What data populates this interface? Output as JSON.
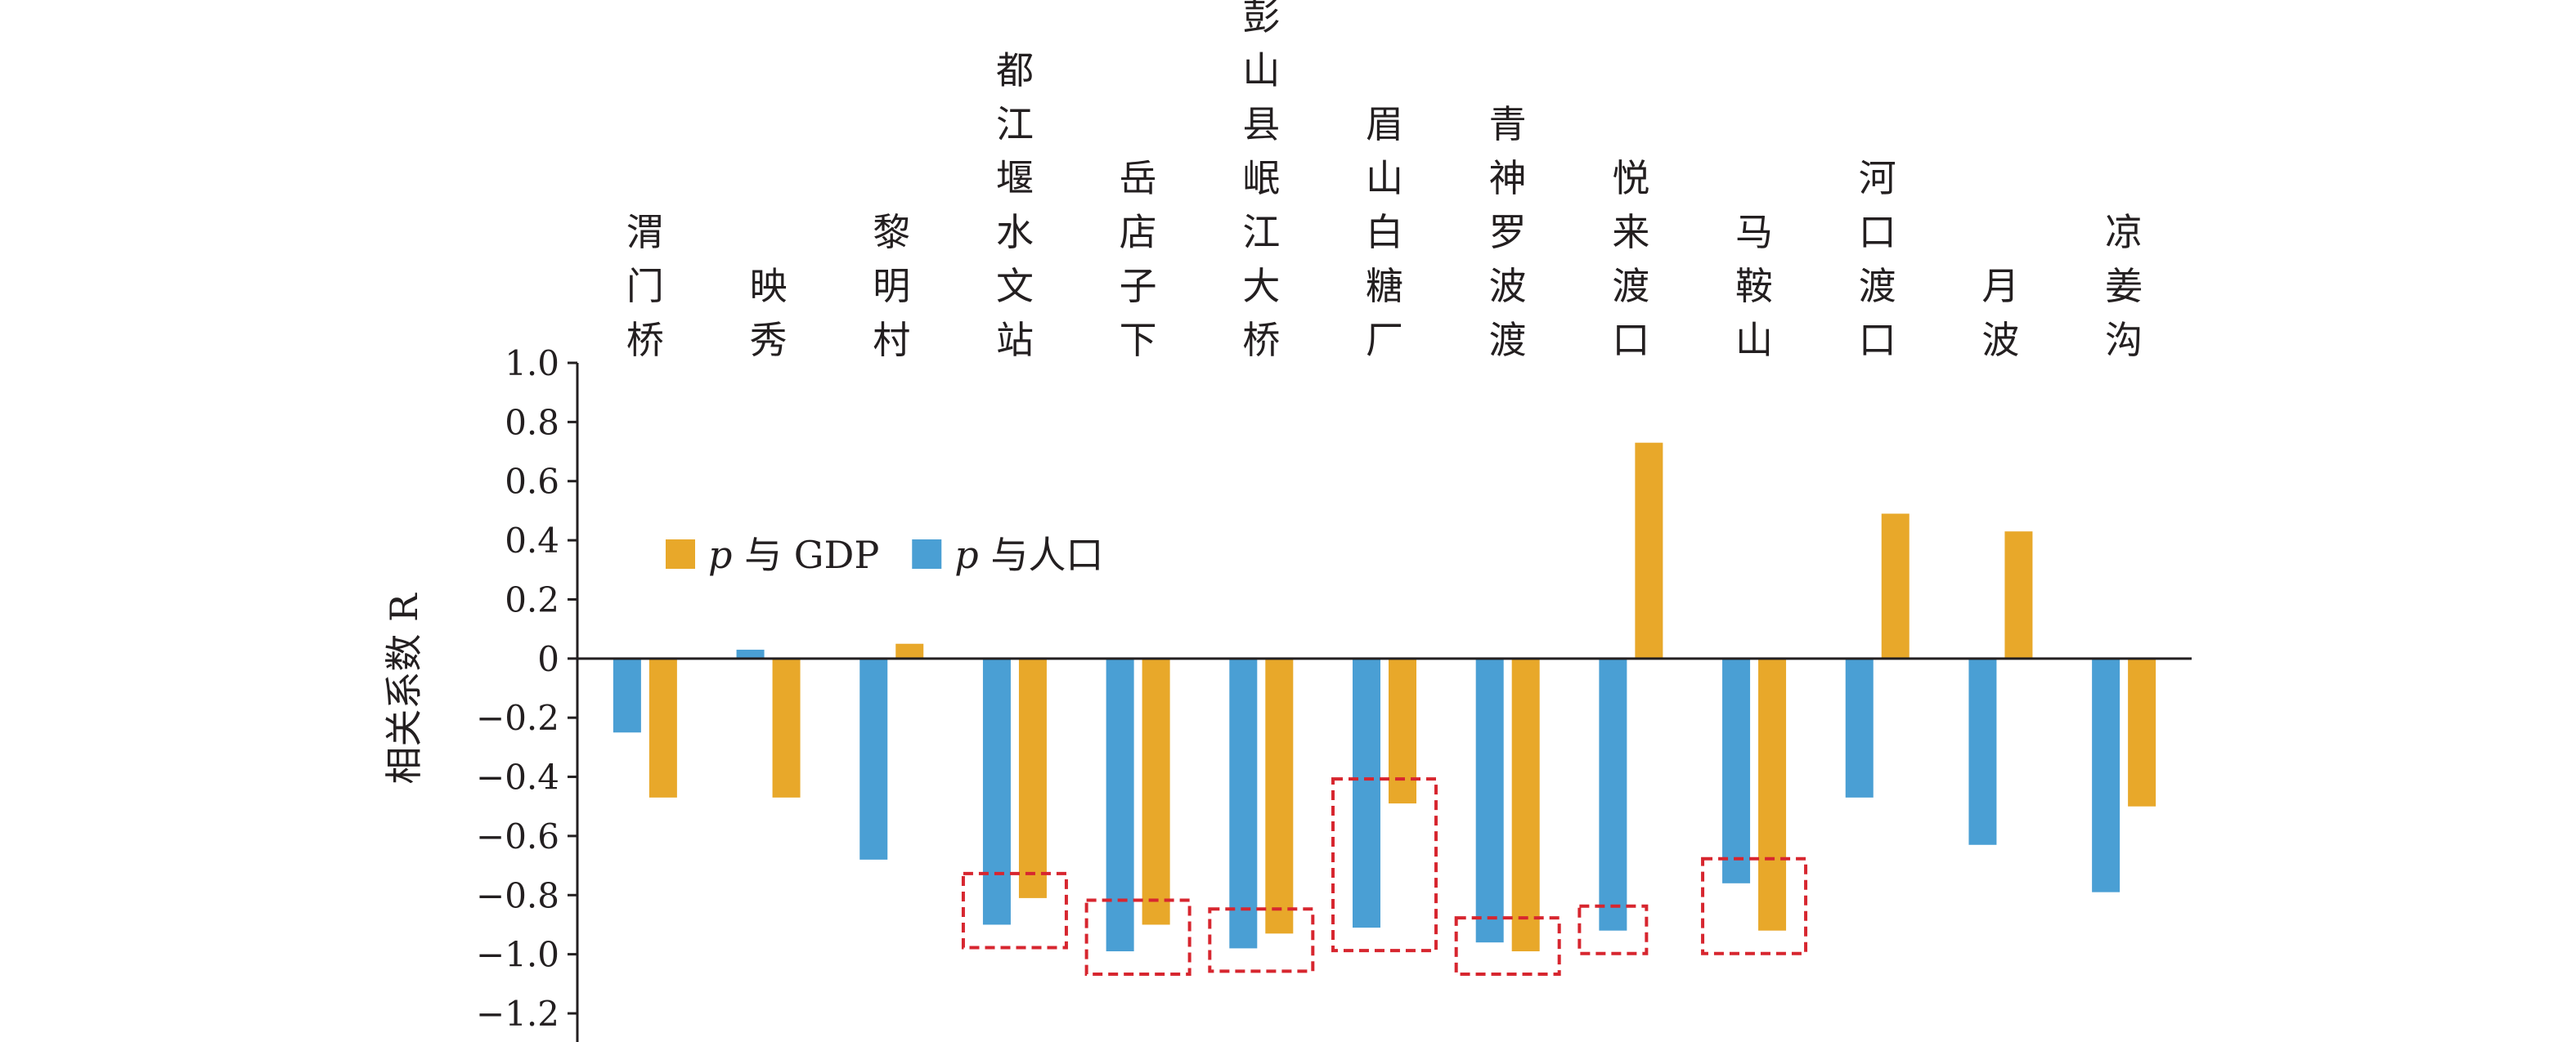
{
  "chart_data": {
    "type": "bar",
    "ylabel": "相关系数 R",
    "ylim": [
      -1.2,
      1.0
    ],
    "yticks": [
      "1.0",
      "0.8",
      "0.6",
      "0.4",
      "0.2",
      "0",
      "−0.2",
      "−0.4",
      "−0.6",
      "−0.8",
      "−1.0",
      "−1.2"
    ],
    "ytick_values": [
      1.0,
      0.8,
      0.6,
      0.4,
      0.2,
      0,
      -0.2,
      -0.4,
      -0.6,
      -0.8,
      -1.0,
      -1.2
    ],
    "categories": [
      "渭门桥",
      "映秀",
      "黎明村",
      "都江堰水文站",
      "岳店子下",
      "彭山县岷江大桥",
      "眉山白糖厂",
      "青神罗波渡",
      "悦来渡口",
      "马鞍山",
      "河口渡口",
      "月波",
      "凉姜沟"
    ],
    "series": [
      {
        "name": "p 与人口",
        "color": "#4a9fd4",
        "values": [
          -0.25,
          0.03,
          -0.68,
          -0.9,
          -0.99,
          -0.98,
          -0.91,
          -0.96,
          -0.92,
          -0.76,
          -0.47,
          -0.63,
          -0.79
        ]
      },
      {
        "name": "p 与 GDP",
        "color": "#e8a82a",
        "values": [
          -0.47,
          -0.47,
          0.05,
          -0.81,
          -0.9,
          -0.93,
          -0.49,
          -0.99,
          0.73,
          -0.92,
          0.49,
          0.43,
          -0.5
        ]
      }
    ],
    "highlight_categories": [
      3,
      4,
      5,
      6,
      7,
      8,
      9
    ],
    "highlight_color": "#d7262f",
    "legend": {
      "placement": "upper-left inside plot",
      "order": [
        1,
        0
      ],
      "entries": [
        {
          "italic": "p",
          "text": " 与 GDP"
        },
        {
          "italic": "p",
          "text": " 与人口"
        }
      ]
    },
    "grid": false
  }
}
